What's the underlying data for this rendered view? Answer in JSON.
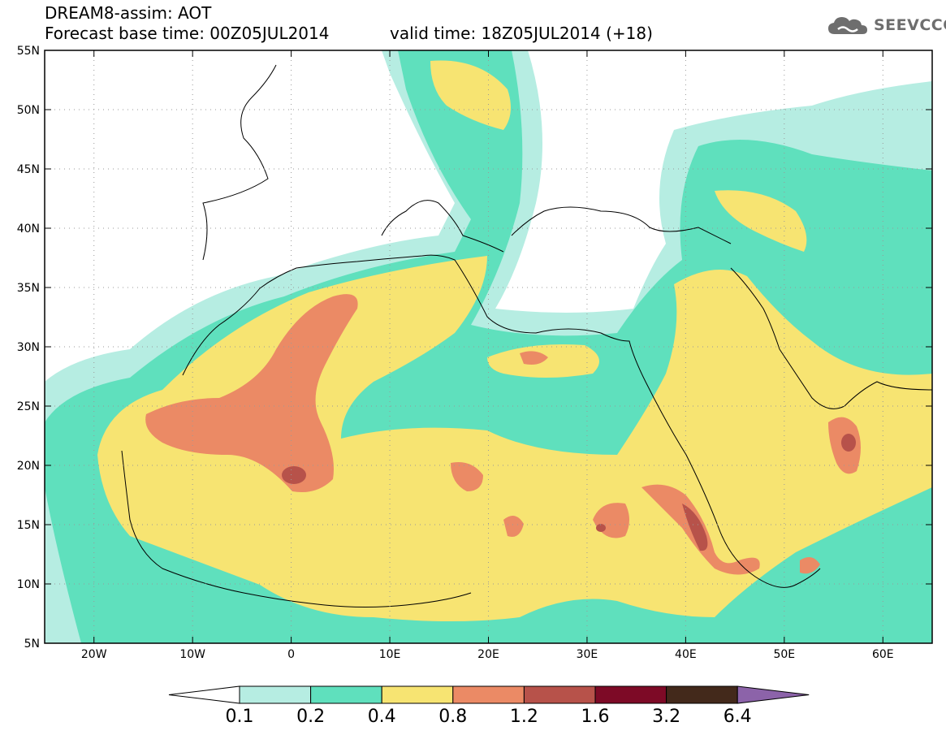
{
  "header": {
    "model_title": "DREAM8-assim: AOT",
    "base_time": "Forecast base time: 00Z05JUL2014",
    "valid_time": "valid time: 18Z05JUL2014 (+18)"
  },
  "logo": {
    "text": "SEEVCCC",
    "icon": "cloud-icon"
  },
  "axes": {
    "lat_labels": [
      "55N",
      "50N",
      "45N",
      "40N",
      "35N",
      "30N",
      "25N",
      "20N",
      "15N",
      "10N",
      "5N"
    ],
    "lat_values": [
      55,
      50,
      45,
      40,
      35,
      30,
      25,
      20,
      15,
      10,
      5
    ],
    "lon_labels": [
      "20W",
      "10W",
      "0",
      "10E",
      "20E",
      "30E",
      "40E",
      "50E",
      "60E"
    ],
    "lon_values": [
      -20,
      -10,
      0,
      10,
      20,
      30,
      40,
      50,
      60
    ],
    "lon_range": [
      -25,
      65
    ],
    "lat_range": [
      5,
      55
    ],
    "grid": "dotted"
  },
  "colorbar": {
    "labels": [
      "0.1",
      "0.2",
      "0.4",
      "0.8",
      "1.2",
      "1.6",
      "3.2",
      "6.4"
    ],
    "colors": [
      "#ffffff",
      "#b6ede2",
      "#5fe0bd",
      "#f7e472",
      "#eb8a65",
      "#b7524a",
      "#7d0a26",
      "#43291b",
      "#8c63a9"
    ]
  },
  "colors": {
    "c1": "#b6ede2",
    "c2": "#5fe0bd",
    "c3": "#f7e472",
    "c4": "#eb8a65",
    "c5": "#b7524a"
  }
}
